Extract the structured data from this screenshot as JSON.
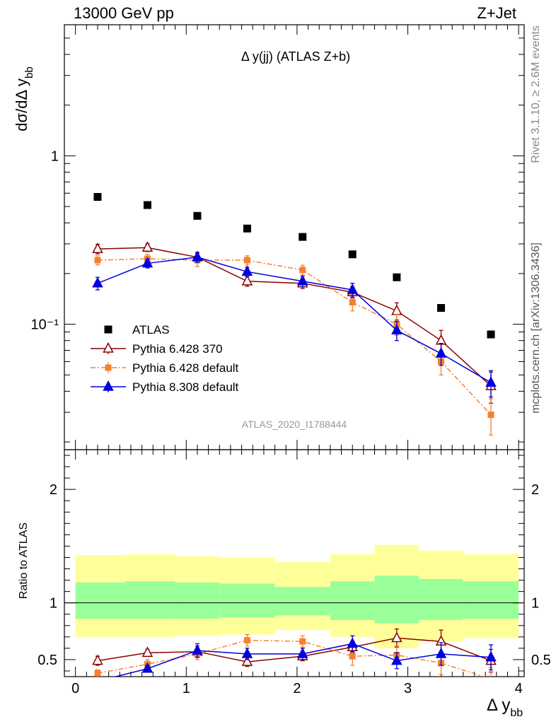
{
  "header": {
    "left": "13000 GeV pp",
    "right": "Z+Jet"
  },
  "side_texts": {
    "rivet": "Rivet 3.1.10, ≥ 2.6M events",
    "mcplots": "mcplots.cern.ch [arXiv:1306.3436]"
  },
  "chart_data": [
    {
      "type": "scatter",
      "title": "Δ y(jj) (ATLAS Z+b)",
      "analysis_label": "ATLAS_2020_I1788444",
      "ylabel": "dσ/dΔ y_bb",
      "xlabel": "Δ y_bb",
      "xlim": [
        -0.1,
        4.05
      ],
      "ylim": [
        0.018,
        6.0
      ],
      "yscale": "log",
      "y_ticks": [
        {
          "value": 1,
          "label": "1"
        },
        {
          "value": 0.1,
          "label": "10⁻¹"
        }
      ],
      "legend_position": "lower-left",
      "x": [
        0.2,
        0.65,
        1.1,
        1.55,
        2.05,
        2.5,
        2.9,
        3.3,
        3.75
      ],
      "series": [
        {
          "name": "ATLAS",
          "color": "#000000",
          "marker": "square",
          "values": [
            0.57,
            0.51,
            0.44,
            0.37,
            0.33,
            0.26,
            0.19,
            0.125,
            0.087
          ]
        },
        {
          "name": "Pythia 6.428 370",
          "color": "#8b0000",
          "marker": "open-triangle",
          "values": [
            0.28,
            0.285,
            0.25,
            0.18,
            0.175,
            0.155,
            0.12,
            0.08,
            0.043
          ],
          "errors": [
            0.018,
            0.015,
            0.015,
            0.012,
            0.012,
            0.012,
            0.014,
            0.012,
            0.009
          ]
        },
        {
          "name": "Pythia 6.428 default",
          "color": "#f5812f",
          "marker": "square",
          "dash": true,
          "values": [
            0.24,
            0.245,
            0.24,
            0.24,
            0.21,
            0.135,
            0.1,
            0.06,
            0.029
          ],
          "errors": [
            0.015,
            0.015,
            0.02,
            0.015,
            0.014,
            0.015,
            0.014,
            0.01,
            0.007
          ]
        },
        {
          "name": "Pythia 8.308 default",
          "color": "#0000dd",
          "marker": "triangle",
          "values": [
            0.175,
            0.23,
            0.25,
            0.205,
            0.18,
            0.16,
            0.092,
            0.067,
            0.045
          ],
          "errors": [
            0.015,
            0.014,
            0.017,
            0.013,
            0.013,
            0.015,
            0.012,
            0.01,
            0.008
          ]
        }
      ]
    },
    {
      "type": "scatter",
      "ylabel": "Ratio to ATLAS",
      "xlabel": "Δ y_bb",
      "xlim": [
        -0.1,
        4.05
      ],
      "ylim": [
        0.35,
        2.35
      ],
      "y_ticks": [
        0.5,
        1,
        2
      ],
      "x_ticks": [
        0,
        1,
        2,
        3,
        4
      ],
      "bands": {
        "bin_edges": [
          0.0,
          0.45,
          0.9,
          1.3,
          1.8,
          2.3,
          2.7,
          3.1,
          3.5,
          4.0
        ],
        "outer_color": "#ffff99",
        "inner_color": "#99ff99",
        "outer_low": [
          0.7,
          0.7,
          0.71,
          0.72,
          0.76,
          0.7,
          0.6,
          0.66,
          0.69
        ],
        "outer_high": [
          1.42,
          1.43,
          1.41,
          1.4,
          1.36,
          1.43,
          1.51,
          1.46,
          1.43
        ],
        "inner_low": [
          0.86,
          0.86,
          0.86,
          0.87,
          0.89,
          0.85,
          0.82,
          0.85,
          0.86
        ],
        "inner_high": [
          1.18,
          1.19,
          1.18,
          1.17,
          1.14,
          1.19,
          1.24,
          1.21,
          1.19
        ]
      },
      "x": [
        0.2,
        0.65,
        1.1,
        1.55,
        2.05,
        2.5,
        2.9,
        3.3,
        3.75
      ],
      "series": [
        {
          "name": "Pythia 6.428 370",
          "color": "#8b0000",
          "marker": "open-triangle",
          "values": [
            0.49,
            0.56,
            0.57,
            0.48,
            0.53,
            0.61,
            0.69,
            0.66,
            0.49
          ],
          "errors": [
            0.04,
            0.03,
            0.05,
            0.04,
            0.04,
            0.05,
            0.08,
            0.1,
            0.1
          ]
        },
        {
          "name": "Pythia 6.428 default",
          "color": "#f5812f",
          "marker": "square",
          "dash": true,
          "values": [
            0.38,
            0.46,
            0.55,
            0.67,
            0.66,
            0.53,
            0.54,
            0.47,
            0.33
          ],
          "errors": [
            0.03,
            0.04,
            0.05,
            0.05,
            0.05,
            0.08,
            0.08,
            0.1,
            0.1
          ]
        },
        {
          "name": "Pythia 8.308 default",
          "color": "#0000dd",
          "marker": "triangle",
          "values": [
            0.31,
            0.42,
            0.58,
            0.55,
            0.55,
            0.64,
            0.49,
            0.55,
            0.52
          ],
          "errors": [
            0.03,
            0.03,
            0.06,
            0.05,
            0.05,
            0.07,
            0.07,
            0.1,
            0.11
          ]
        }
      ]
    }
  ]
}
